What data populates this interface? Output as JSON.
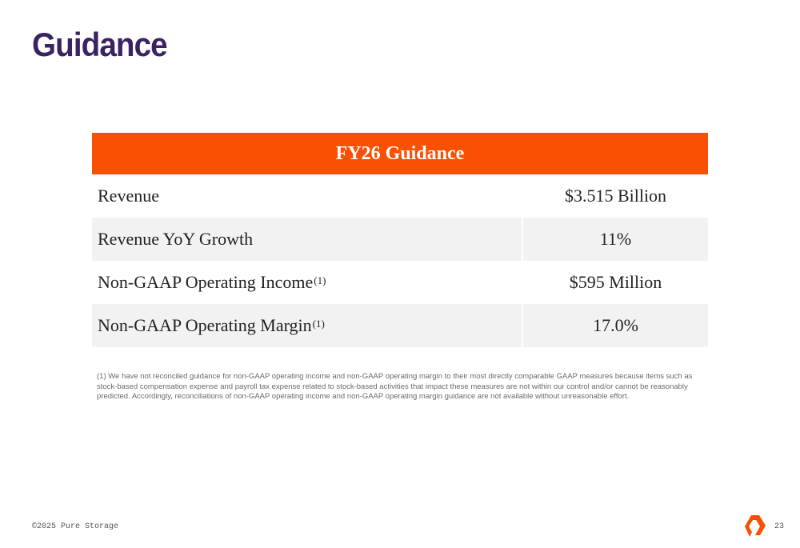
{
  "slide": {
    "title": "Guidance",
    "table": {
      "header": "FY26 Guidance",
      "rows": [
        {
          "label": "Revenue",
          "sup": "",
          "value": "$3.515 Billion"
        },
        {
          "label": "Revenue YoY Growth",
          "sup": "",
          "value": "11%"
        },
        {
          "label": "Non-GAAP Operating Income",
          "sup": "(1)",
          "value": "$595 Million"
        },
        {
          "label": "Non-GAAP Operating Margin",
          "sup": "(1)",
          "value": "17.0%"
        }
      ]
    },
    "footnote": "(1) We have not reconciled guidance for non-GAAP operating income and non-GAAP operating margin to their most directly comparable GAAP measures because items such as stock-based compensation expense and payroll tax expense related to stock-based activities that impact these measures are not within our control and/or cannot be reasonably predicted. Accordingly, reconciliations of non-GAAP operating income and non-GAAP operating margin guidance are not available without unreasonable effort.",
    "copyright": "©2025 Pure Storage",
    "page_number": "23",
    "logo_icon": "pure-storage-logo-icon",
    "colors": {
      "accent": "#fa5003",
      "title": "#3b2260",
      "row_shade": "#f2f2f2"
    }
  }
}
